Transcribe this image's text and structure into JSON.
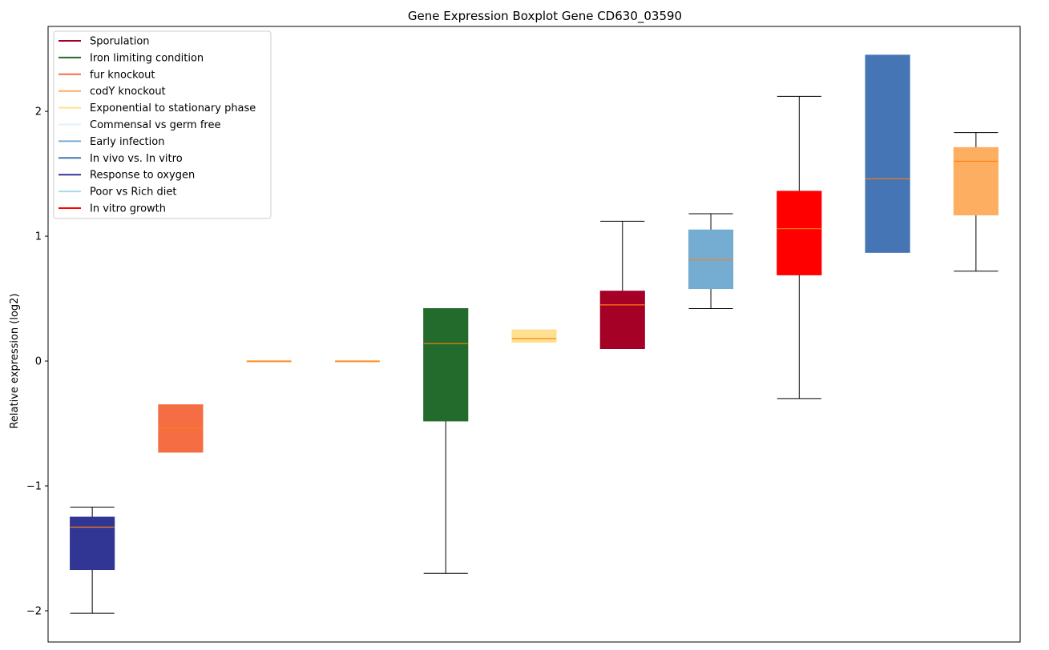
{
  "chart_data": {
    "type": "boxplot",
    "title": "Gene Expression Boxplot Gene CD630_03590",
    "xlabel": "",
    "ylabel": "Relative expression (log2)",
    "ylim": [
      -2.25,
      2.68
    ],
    "yticks": [
      -2,
      -1,
      0,
      1,
      2
    ],
    "ytick_labels": [
      "−2",
      "−1",
      "0",
      "1",
      "2"
    ],
    "grid": false,
    "legend_position": "top-left",
    "median_color": "#ff7f0e",
    "legend": [
      {
        "label": "Sporulation",
        "color": "#a50026"
      },
      {
        "label": "Iron limiting condition",
        "color": "#226b2d"
      },
      {
        "label": "fur knockout",
        "color": "#f46d43"
      },
      {
        "label": "codY knockout",
        "color": "#fdae61"
      },
      {
        "label": "Exponential to stationary phase",
        "color": "#fee090"
      },
      {
        "label": "Commensal vs germ free",
        "color": "#e0f3f8"
      },
      {
        "label": "Early infection",
        "color": "#74add1"
      },
      {
        "label": "In vivo vs. In vitro",
        "color": "#4575b4"
      },
      {
        "label": "Response to oxygen",
        "color": "#313695"
      },
      {
        "label": "Poor vs Rich diet",
        "color": "#abd9e9"
      },
      {
        "label": "In vitro growth",
        "color": "#ff0000"
      }
    ],
    "boxes": [
      {
        "group": "Response to oxygen",
        "color": "#313695",
        "whisker_low": -2.02,
        "q1": -1.67,
        "median": -1.33,
        "q3": -1.25,
        "whisker_high": -1.17,
        "whiskers": true
      },
      {
        "group": "fur knockout",
        "color": "#f46d43",
        "whisker_low": -0.73,
        "q1": -0.73,
        "median": -0.54,
        "q3": -0.35,
        "whisker_high": -0.35,
        "whiskers": false
      },
      {
        "group": "codY knockout",
        "color": "#fdae61",
        "whisker_low": 0.0,
        "q1": 0.0,
        "median": 0.0,
        "q3": 0.0,
        "whisker_high": 0.0,
        "whiskers": false
      },
      {
        "group": "codY knockout",
        "color": "#fdae61",
        "whisker_low": 0.0,
        "q1": 0.0,
        "median": 0.0,
        "q3": 0.0,
        "whisker_high": 0.0,
        "whiskers": false
      },
      {
        "group": "Iron limiting condition",
        "color": "#226b2d",
        "whisker_low": -1.7,
        "q1": -0.48,
        "median": 0.14,
        "q3": 0.42,
        "whisker_high": 0.42,
        "whiskers": true
      },
      {
        "group": "Exponential to stationary phase",
        "color": "#fee090",
        "whisker_low": 0.15,
        "q1": 0.15,
        "median": 0.18,
        "q3": 0.25,
        "whisker_high": 0.25,
        "whiskers": false
      },
      {
        "group": "Sporulation",
        "color": "#a50026",
        "whisker_low": 0.1,
        "q1": 0.1,
        "median": 0.45,
        "q3": 0.56,
        "whisker_high": 1.12,
        "whiskers": true
      },
      {
        "group": "Early infection",
        "color": "#74add1",
        "whisker_low": 0.42,
        "q1": 0.58,
        "median": 0.81,
        "q3": 1.05,
        "whisker_high": 1.18,
        "whiskers": true
      },
      {
        "group": "In vitro growth",
        "color": "#ff0000",
        "whisker_low": -0.3,
        "q1": 0.69,
        "median": 1.06,
        "q3": 1.36,
        "whisker_high": 2.12,
        "whiskers": true
      },
      {
        "group": "In vivo vs. In vitro",
        "color": "#4575b4",
        "whisker_low": 0.87,
        "q1": 0.87,
        "median": 1.46,
        "q3": 2.45,
        "whisker_high": 2.45,
        "whiskers": false
      },
      {
        "group": "codY knockout",
        "color": "#fdae61",
        "whisker_low": 0.72,
        "q1": 1.17,
        "median": 1.6,
        "q3": 1.71,
        "whisker_high": 1.83,
        "whiskers": true
      }
    ]
  }
}
